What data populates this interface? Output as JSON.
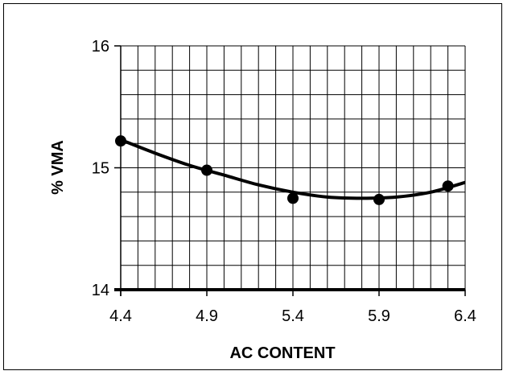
{
  "chart_data": {
    "type": "scatter",
    "title": "",
    "xlabel": "AC CONTENT",
    "ylabel": "% VMA",
    "xlim": [
      4.4,
      6.4
    ],
    "ylim": [
      14,
      16
    ],
    "x_ticks": [
      "4.4",
      "4.9",
      "5.4",
      "5.9",
      "6.4"
    ],
    "y_ticks": [
      "14",
      "15",
      "16"
    ],
    "x_minor_step": 0.1,
    "y_minor_step": 0.2,
    "grid": true,
    "series": [
      {
        "points": [
          {
            "x": 4.4,
            "y": 15.22
          },
          {
            "x": 4.9,
            "y": 14.98
          },
          {
            "x": 5.4,
            "y": 14.75
          },
          {
            "x": 5.9,
            "y": 14.74
          },
          {
            "x": 6.3,
            "y": 14.85
          }
        ]
      }
    ],
    "trendline": {
      "type": "polynomial",
      "points": [
        {
          "x": 4.4,
          "y": 15.23
        },
        {
          "x": 4.6,
          "y": 15.12
        },
        {
          "x": 4.8,
          "y": 15.02
        },
        {
          "x": 5.0,
          "y": 14.94
        },
        {
          "x": 5.2,
          "y": 14.86
        },
        {
          "x": 5.4,
          "y": 14.8
        },
        {
          "x": 5.6,
          "y": 14.76
        },
        {
          "x": 5.8,
          "y": 14.75
        },
        {
          "x": 6.0,
          "y": 14.76
        },
        {
          "x": 6.2,
          "y": 14.8
        },
        {
          "x": 6.4,
          "y": 14.88
        }
      ]
    }
  }
}
